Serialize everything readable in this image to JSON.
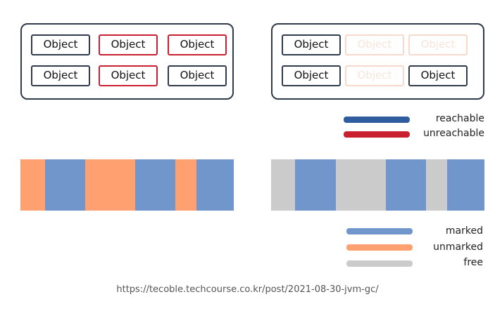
{
  "colors": {
    "reachable": "#2f5c9e",
    "unreachable": "#c8202e",
    "marked": "#7096cc",
    "unmarked": "#ffa070",
    "free": "#cbcbcb"
  },
  "object_label": "Object",
  "heap_before": {
    "objects": [
      {
        "label": "Object",
        "state": "reachable"
      },
      {
        "label": "Object",
        "state": "unreachable"
      },
      {
        "label": "Object",
        "state": "unreachable"
      },
      {
        "label": "Object",
        "state": "reachable"
      },
      {
        "label": "Object",
        "state": "unreachable"
      },
      {
        "label": "Object",
        "state": "reachable"
      }
    ]
  },
  "heap_after": {
    "objects": [
      {
        "label": "Object",
        "state": "reachable"
      },
      {
        "label": "Object",
        "state": "freed"
      },
      {
        "label": "Object",
        "state": "freed"
      },
      {
        "label": "Object",
        "state": "reachable"
      },
      {
        "label": "Object",
        "state": "freed"
      },
      {
        "label": "Object",
        "state": "reachable"
      }
    ]
  },
  "legend_reach": {
    "reachable": "reachable",
    "unreachable": "unreachable"
  },
  "memory_before": [
    "unmarked",
    "marked",
    "unmarked",
    "marked",
    "unmarked",
    "marked"
  ],
  "memory_after": [
    "free",
    "marked",
    "free",
    "marked",
    "free",
    "marked"
  ],
  "legend_mark": {
    "marked": "marked",
    "unmarked": "unmarked",
    "free": "free"
  },
  "source": "https://tecoble.techcourse.co.kr/post/2021-08-30-jvm-gc/"
}
